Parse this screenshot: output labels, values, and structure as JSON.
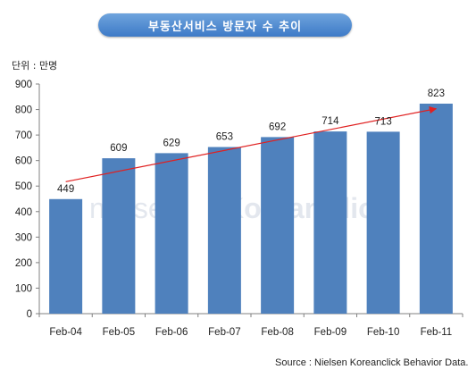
{
  "header": {
    "title": "부동산서비스 방문자 수 추이",
    "unit": "단위 : 만명"
  },
  "footer": {
    "source": "Source : Nielsen Koreanclick Behavior Data."
  },
  "watermark": {
    "part1": "nielsen",
    "part2": "KoreanClick"
  },
  "colors": {
    "bar": "#4f81bd",
    "trend": "#e02020",
    "title_bg": "#4f88cf"
  },
  "chart_data": {
    "type": "bar",
    "categories": [
      "Feb-04",
      "Feb-05",
      "Feb-06",
      "Feb-07",
      "Feb-08",
      "Feb-09",
      "Feb-10",
      "Feb-11"
    ],
    "values": [
      449,
      609,
      629,
      653,
      692,
      714,
      713,
      823
    ],
    "title": "부동산서비스 방문자 수 추이",
    "ylabel": "단위 : 만명",
    "xlabel": "",
    "ylim": [
      0,
      900
    ],
    "yticks": [
      0,
      100,
      200,
      300,
      400,
      500,
      600,
      700,
      800,
      900
    ],
    "trendline": true,
    "grid": false
  }
}
